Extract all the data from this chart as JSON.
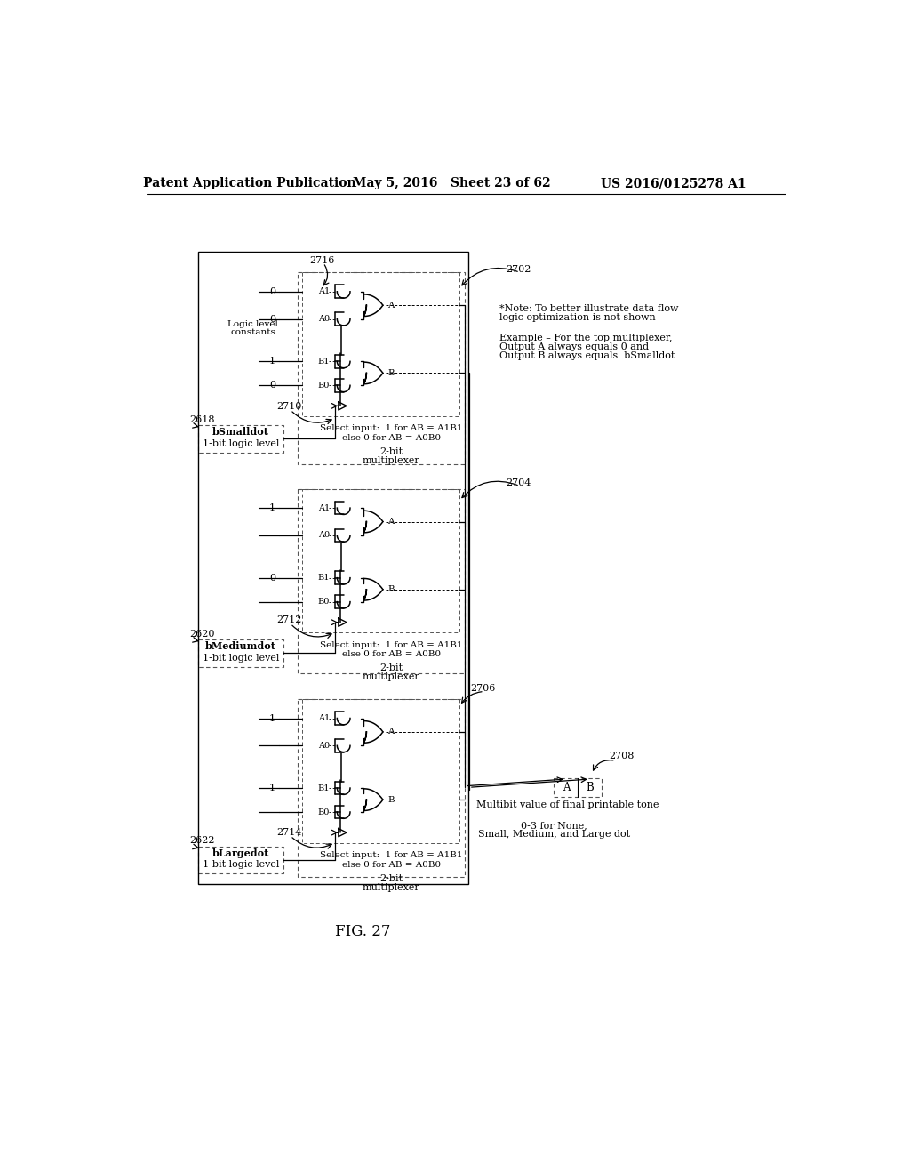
{
  "title_left": "Patent Application Publication",
  "title_mid": "May 5, 2016   Sheet 23 of 62",
  "title_right": "US 2016/0125278 A1",
  "fig_label": "FIG. 27",
  "background": "#ffffff",
  "note_text1": "*Note: To better illustrate data flow",
  "note_text2": "logic optimization is not shown",
  "note_text3": "Example – For the top multiplexer,",
  "note_text4": "Output A always equals 0 and",
  "note_text5": "Output B always equals  bSmalldot",
  "select_text1": "Select input:  1 for AB = A1B1",
  "select_text2": "else 0 for AB = A0B0",
  "mux_text": "2-bit",
  "mux_text2": "multiplexer",
  "multibit1": "Multibit value of final printable tone",
  "multibit2": "0-3 for None,",
  "multibit3": "Small, Medium, and Large dot",
  "logic_level_label1": "Logic level",
  "logic_level_label2": "constants",
  "mux1_inputs": [
    "0",
    "0",
    "1",
    "0"
  ],
  "mux2_inputs": [
    "1",
    "",
    "0",
    ""
  ],
  "mux3_inputs": [
    "1",
    "",
    "1",
    ""
  ],
  "ref_2716": "2716",
  "ref_2710": "2710",
  "ref_2712": "2712",
  "ref_2714": "2714",
  "ref_2702": "2702",
  "ref_2704": "2704",
  "ref_2706": "2706",
  "ref_2708": "2708",
  "ref_2618": "2618",
  "ref_2620": "2620",
  "ref_2622": "2622",
  "label_bSmall1": "bSmalldot",
  "label_bSmall2": "1-bit logic level",
  "label_bMedium1": "bMediumdot",
  "label_bMedium2": "1-bit logic level",
  "label_bLarge1": "bLargedot",
  "label_bLarge2": "1-bit logic level"
}
